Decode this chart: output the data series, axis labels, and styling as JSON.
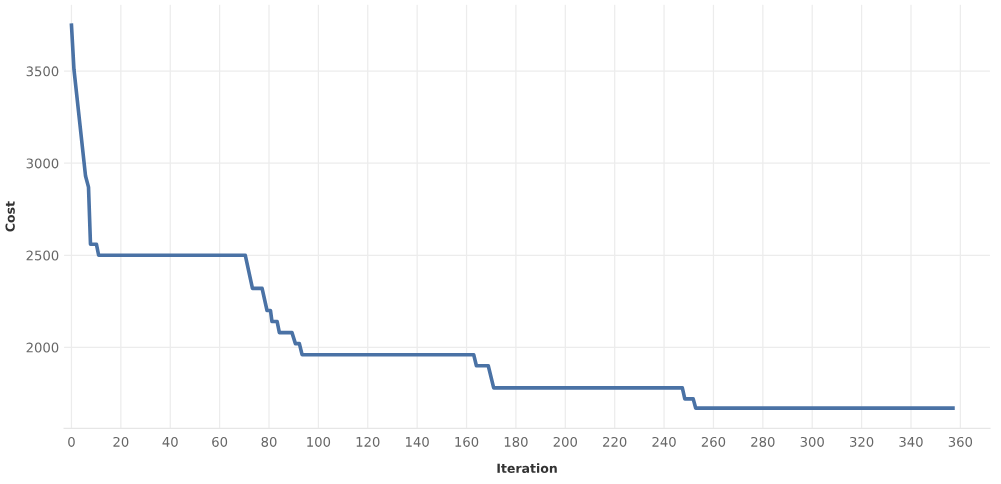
{
  "chart_data": {
    "type": "line",
    "xlabel": "Iteration",
    "ylabel": "Cost",
    "x": [
      0,
      1,
      5.7,
      6.9,
      7.7,
      10.1,
      11,
      70.4,
      73.3,
      77.2,
      79.2,
      80.6,
      81.2,
      83.3,
      84.2,
      89.3,
      90.7,
      92.3,
      93.4,
      162.9,
      164,
      168.8,
      171,
      247.4,
      248.4,
      251.8,
      252.8,
      357
    ],
    "series": [
      {
        "color": "#4a72a5",
        "values": [
          3750,
          3510,
          2930,
          2870,
          2560,
          2560,
          2500,
          2500,
          2320,
          2320,
          2200,
          2200,
          2140,
          2140,
          2080,
          2080,
          2020,
          2020,
          1960,
          1960,
          1900,
          1900,
          1780,
          1780,
          1720,
          1720,
          1670,
          1670
        ]
      }
    ],
    "xlim": [
      -3,
      372
    ],
    "ylim": [
      1560,
      3860
    ],
    "xticks": [
      0,
      20,
      40,
      60,
      80,
      100,
      120,
      140,
      160,
      180,
      200,
      220,
      240,
      260,
      280,
      300,
      320,
      340,
      360
    ],
    "yticks": [
      2000,
      2500,
      3000,
      3500
    ],
    "grid": true,
    "legend": false,
    "marker": "none",
    "line_style": "solid"
  }
}
